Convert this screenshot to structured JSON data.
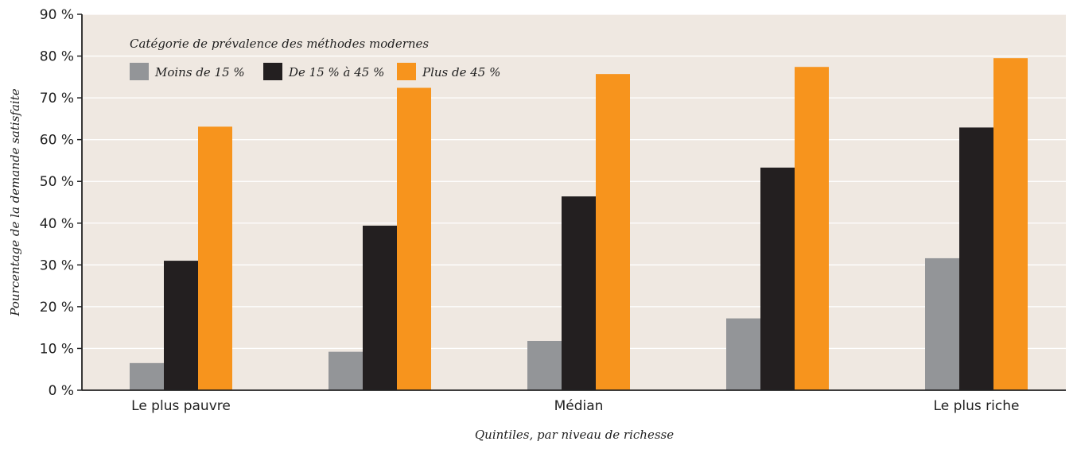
{
  "chart_data": {
    "type": "bar",
    "categories": [
      "Le plus pauvre",
      "",
      "Médian",
      "",
      "Le plus riche"
    ],
    "category_labels_shown": [
      "Le plus pauvre",
      "Médian",
      "Le plus riche"
    ],
    "series": [
      {
        "name": "Moins de 15 %",
        "color": "#939598",
        "values": [
          6.5,
          9.2,
          11.8,
          17.2,
          31.6
        ]
      },
      {
        "name": "De 15 % à 45 %",
        "color": "#231f20",
        "values": [
          31.0,
          39.4,
          46.4,
          53.3,
          62.9
        ]
      },
      {
        "name": "Plus de 45 %",
        "color": "#f7941d",
        "values": [
          63.1,
          72.4,
          75.7,
          77.4,
          79.5
        ]
      }
    ],
    "title": "",
    "xlabel": "Quintiles, par niveau de richesse",
    "ylabel": "Pourcentage de la demande satisfaite",
    "ylim": [
      0,
      90
    ],
    "yticks": [
      0,
      10,
      20,
      30,
      40,
      50,
      60,
      70,
      80,
      90
    ],
    "ytick_labels": [
      "0 %",
      "10 %",
      "20 %",
      "30 %",
      "40 %",
      "50 %",
      "60 %",
      "70 %",
      "80 %",
      "90 %"
    ],
    "legend_title": "Catégorie de prévalence des méthodes modernes",
    "legend_position": "top-left",
    "grid": true,
    "plot_background": "#efe8e1",
    "gridline_color": "#ffffff"
  }
}
